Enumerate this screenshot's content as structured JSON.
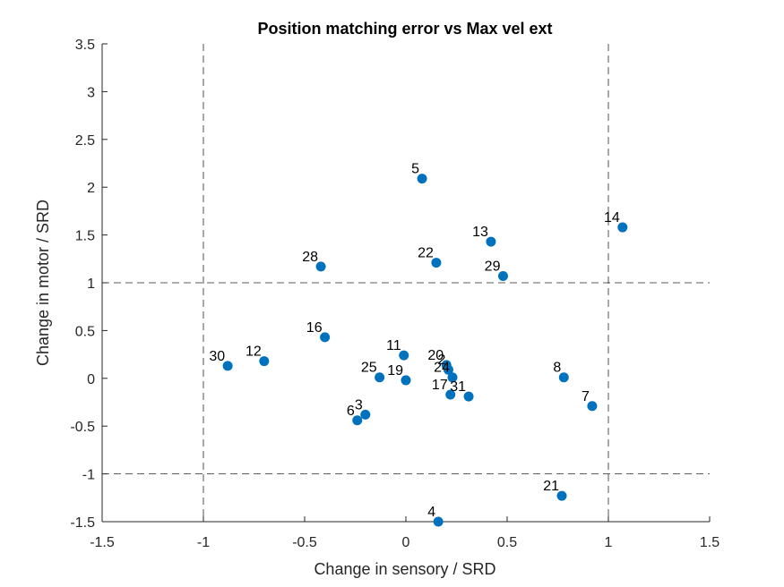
{
  "chart_data": {
    "type": "scatter",
    "title": "Position matching error vs Max vel ext",
    "xlabel": "Change in sensory / SRD",
    "ylabel": "Change in motor / SRD",
    "xlim": [
      -1.5,
      1.5
    ],
    "ylim": [
      -1.5,
      3.5
    ],
    "xticks": [
      -1.5,
      -1,
      -0.5,
      0,
      0.5,
      1,
      1.5
    ],
    "yticks": [
      -1.5,
      -1,
      -0.5,
      0,
      0.5,
      1,
      1.5,
      2,
      2.5,
      3,
      3.5
    ],
    "xtick_labels": [
      "-1.5",
      "-1",
      "-0.5",
      "0",
      "0.5",
      "1",
      "1.5"
    ],
    "ytick_labels": [
      "-1.5",
      "-1",
      "-0.5",
      "0",
      "0.5",
      "1",
      "1.5",
      "2",
      "2.5",
      "3",
      "3.5"
    ],
    "reference_lines": {
      "x": [
        -1,
        1
      ],
      "y": [
        -1,
        1
      ],
      "style": "dashed"
    },
    "grid": false,
    "marker_color": "#0072BD",
    "points": [
      {
        "label": "5",
        "x": 0.08,
        "y": 2.09
      },
      {
        "label": "14",
        "x": 1.07,
        "y": 1.58
      },
      {
        "label": "13",
        "x": 0.42,
        "y": 1.43
      },
      {
        "label": "22",
        "x": 0.15,
        "y": 1.21
      },
      {
        "label": "28",
        "x": -0.42,
        "y": 1.17
      },
      {
        "label": "29",
        "x": 0.48,
        "y": 1.07
      },
      {
        "label": "16",
        "x": -0.4,
        "y": 0.43
      },
      {
        "label": "11",
        "x": -0.01,
        "y": 0.24
      },
      {
        "label": "12",
        "x": -0.7,
        "y": 0.18
      },
      {
        "label": "30",
        "x": -0.88,
        "y": 0.13
      },
      {
        "label": "20",
        "x": 0.2,
        "y": 0.14
      },
      {
        "label": "25",
        "x": -0.13,
        "y": 0.01
      },
      {
        "label": "19",
        "x": 0.0,
        "y": -0.02
      },
      {
        "label": "2",
        "x": 0.21,
        "y": 0.09
      },
      {
        "label": "24",
        "x": 0.23,
        "y": 0.01
      },
      {
        "label": "8",
        "x": 0.78,
        "y": 0.01
      },
      {
        "label": "17",
        "x": 0.22,
        "y": -0.17
      },
      {
        "label": "31",
        "x": 0.31,
        "y": -0.19
      },
      {
        "label": "7",
        "x": 0.92,
        "y": -0.29
      },
      {
        "label": "3",
        "x": -0.2,
        "y": -0.38
      },
      {
        "label": "6",
        "x": -0.24,
        "y": -0.44
      },
      {
        "label": "21",
        "x": 0.77,
        "y": -1.23
      },
      {
        "label": "4",
        "x": 0.16,
        "y": -1.5
      }
    ]
  }
}
